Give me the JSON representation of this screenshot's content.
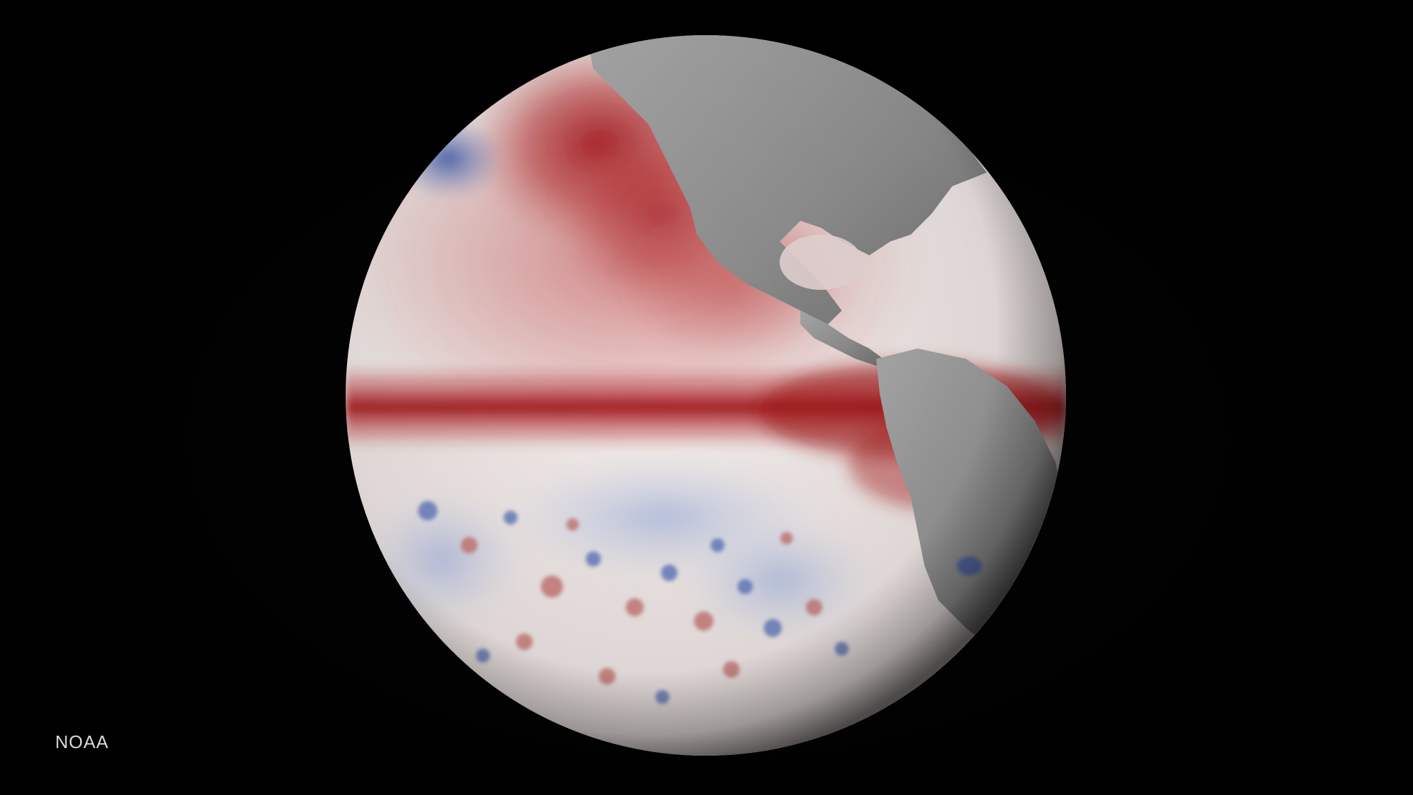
{
  "scene": {
    "background_color": "#000000",
    "subject": "globe-sea-surface-temperature-anomaly"
  },
  "credit": {
    "text": "NOAA"
  },
  "colors": {
    "warm_anomaly": "#a81a1f",
    "neutral": "#f2ecea",
    "cool_anomaly": "#3b57a8",
    "land": "#8f8f8f"
  }
}
